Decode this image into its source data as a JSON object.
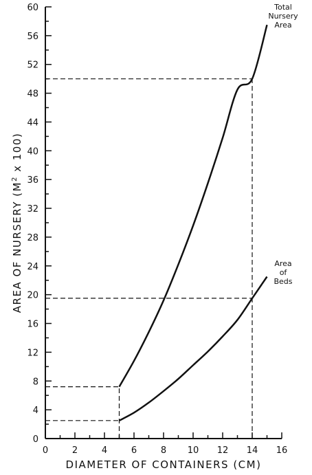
{
  "chart_data": {
    "type": "line",
    "xlabel": "DIAMETER OF CONTAINERS (CM)",
    "ylabel_main": "AREA OF NURSERY (M",
    "ylabel_sup": "2",
    "ylabel_tail": " x 100)",
    "xlim": [
      0,
      16
    ],
    "ylim": [
      0,
      60
    ],
    "x_ticks": [
      0,
      2,
      4,
      6,
      8,
      10,
      12,
      14,
      16
    ],
    "y_ticks": [
      0,
      4,
      8,
      12,
      16,
      20,
      24,
      28,
      32,
      36,
      40,
      44,
      48,
      52,
      56,
      60
    ],
    "grid": false,
    "series": [
      {
        "name_lines": [
          "Total",
          "Nursery",
          "Area"
        ],
        "x": [
          5,
          6,
          7,
          8,
          9,
          10,
          11,
          12,
          13,
          14,
          15
        ],
        "y": [
          7.2,
          10.8,
          14.8,
          19.2,
          24.2,
          29.6,
          35.5,
          41.8,
          48.5,
          50.0,
          57.5
        ]
      },
      {
        "name_lines": [
          "Area",
          "of",
          "Beds"
        ],
        "x": [
          5,
          6,
          7,
          8,
          9,
          10,
          11,
          12,
          13,
          14,
          15
        ],
        "y": [
          2.5,
          3.6,
          5.0,
          6.6,
          8.3,
          10.2,
          12.1,
          14.2,
          16.5,
          19.5,
          22.5
        ]
      }
    ],
    "reference_lines": [
      {
        "from": [
          0,
          7.2
        ],
        "to": [
          5,
          7.2
        ]
      },
      {
        "from": [
          0,
          2.5
        ],
        "to": [
          5,
          2.5
        ]
      },
      {
        "from": [
          5,
          0
        ],
        "to": [
          5,
          7.2
        ]
      },
      {
        "from": [
          0,
          50
        ],
        "to": [
          14,
          50
        ]
      },
      {
        "from": [
          0,
          19.5
        ],
        "to": [
          14,
          19.5
        ]
      },
      {
        "from": [
          14,
          0
        ],
        "to": [
          14,
          50
        ]
      }
    ]
  }
}
